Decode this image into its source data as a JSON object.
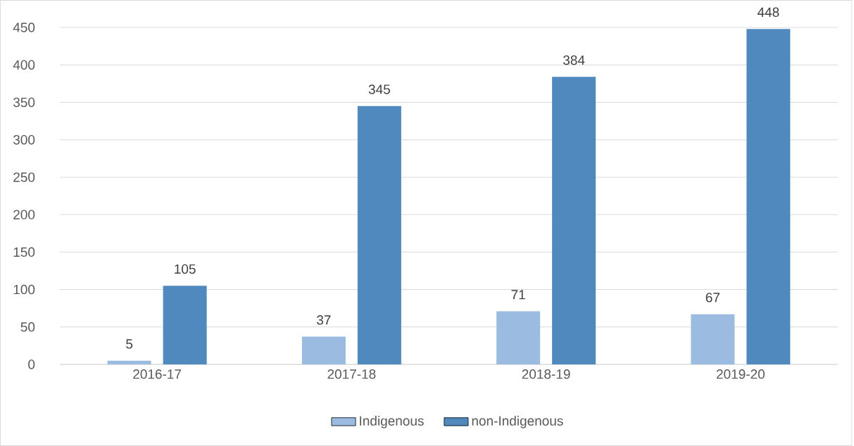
{
  "chart_data": {
    "type": "bar",
    "categories": [
      "2016-17",
      "2017-18",
      "2018-19",
      "2019-20"
    ],
    "series": [
      {
        "name": "Indigenous",
        "color": "#9bbbe0",
        "values": [
          5,
          37,
          71,
          67
        ]
      },
      {
        "name": "non-Indigenous",
        "color": "#4f89bd",
        "values": [
          105,
          345,
          384,
          448
        ]
      }
    ],
    "ylim": [
      0,
      450
    ],
    "yticks": [
      0,
      50,
      100,
      150,
      200,
      250,
      300,
      350,
      400,
      450
    ],
    "grid": "y",
    "legend": "bottom",
    "data_labels": true
  }
}
